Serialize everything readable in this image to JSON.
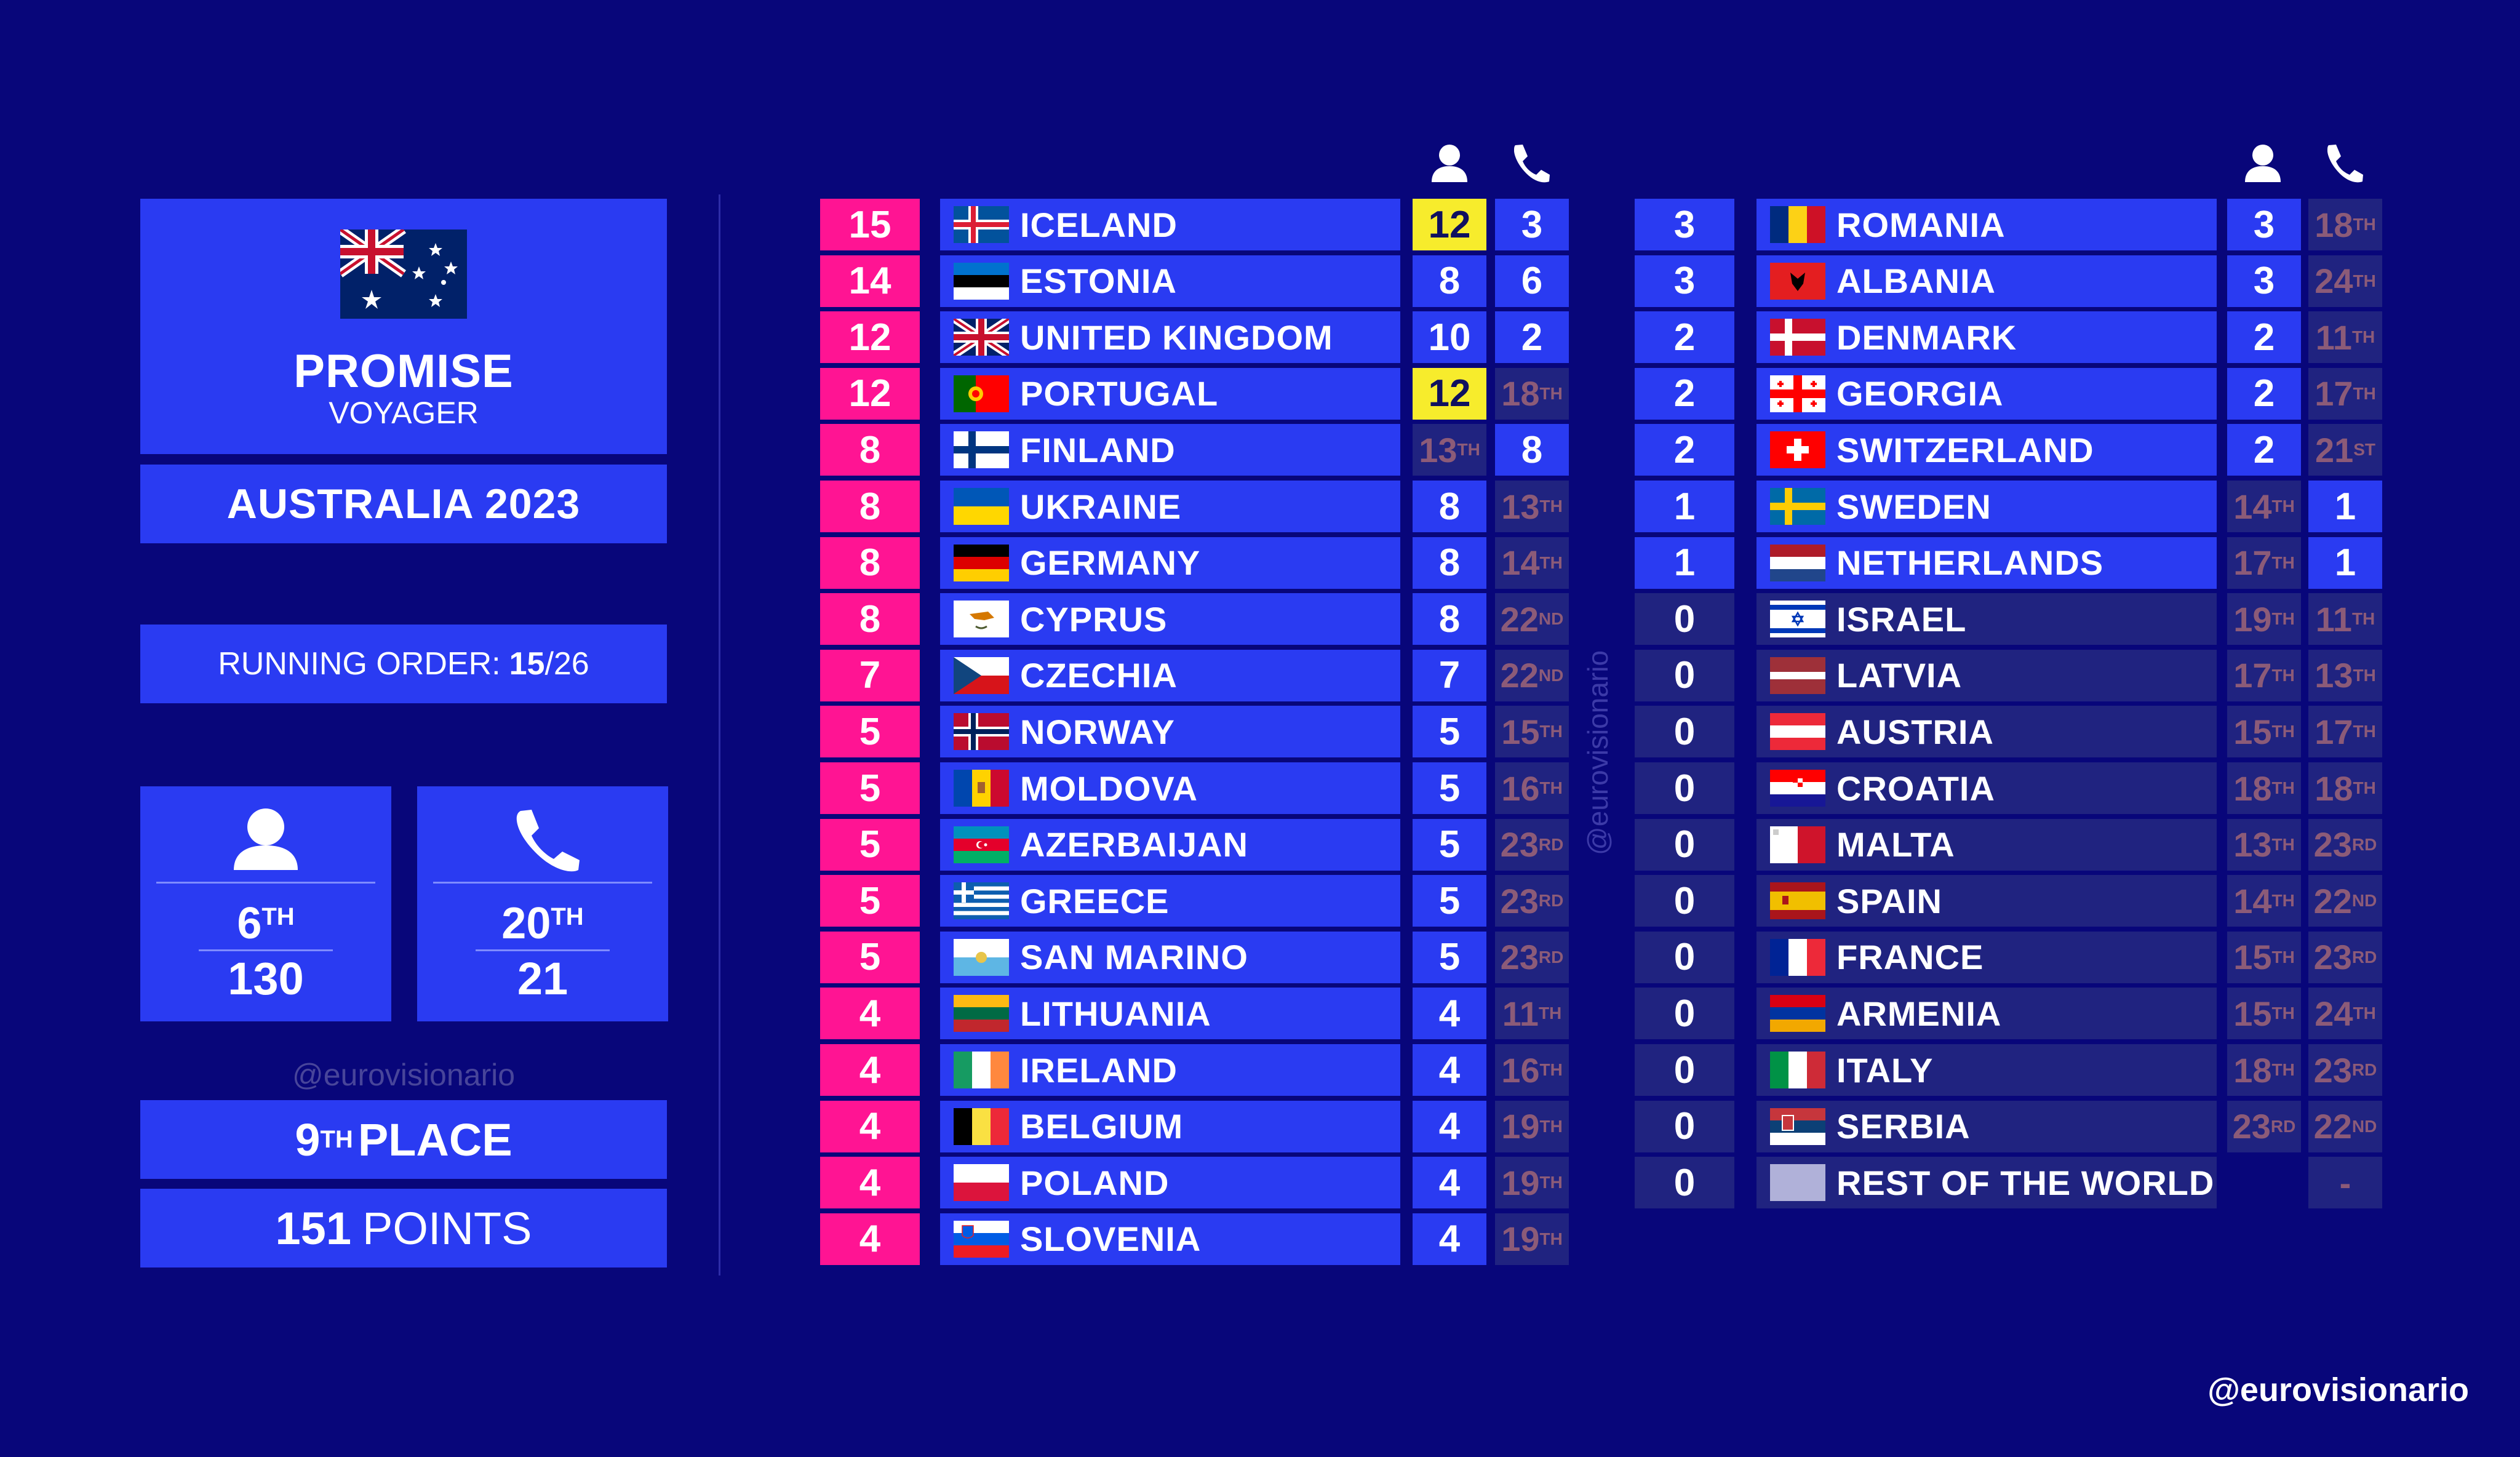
{
  "entry": {
    "song": "PROMISE",
    "performer": "VOYAGER",
    "country_year": "AUSTRALIA 2023",
    "running_order_label": "RUNNING ORDER:",
    "running_order_pos": "15",
    "running_order_total": "/26",
    "jury_rank": "6",
    "jury_rank_suffix": "TH",
    "jury_points": "130",
    "tele_rank": "20",
    "tele_rank_suffix": "TH",
    "tele_points": "21",
    "place": "9",
    "place_suffix": "TH",
    "place_label": "PLACE",
    "total_points": "151",
    "points_label": "POINTS",
    "flag_icon": "australia-flag-icon"
  },
  "handles": {
    "left": "@eurovisionario",
    "vertical": "@eurovisionario",
    "bottom_right": "@eurovisionario"
  },
  "colors": {
    "background": "#08067a",
    "panel": "#2a3bf2",
    "dim_panel": "#202380",
    "jury_pink": "#ff1493",
    "twelve_yellow": "#f7ec2c",
    "rank_muted": "#8c5b78"
  },
  "table_left": [
    {
      "total": "15",
      "country": "ICELAND",
      "jury": "12",
      "jury_hl": true,
      "tele": "3",
      "flag": "iceland"
    },
    {
      "total": "14",
      "country": "ESTONIA",
      "jury": "8",
      "tele": "6",
      "flag": "estonia"
    },
    {
      "total": "12",
      "country": "UNITED KINGDOM",
      "jury": "10",
      "tele": "2",
      "flag": "uk"
    },
    {
      "total": "12",
      "country": "PORTUGAL",
      "jury": "12",
      "jury_hl": true,
      "tele_rank": "18",
      "tele_suffix": "TH",
      "flag": "portugal"
    },
    {
      "total": "8",
      "country": "FINLAND",
      "jury_rank": "13",
      "jury_suffix": "TH",
      "tele": "8",
      "flag": "finland"
    },
    {
      "total": "8",
      "country": "UKRAINE",
      "jury": "8",
      "tele_rank": "13",
      "tele_suffix": "TH",
      "flag": "ukraine"
    },
    {
      "total": "8",
      "country": "GERMANY",
      "jury": "8",
      "tele_rank": "14",
      "tele_suffix": "TH",
      "flag": "germany"
    },
    {
      "total": "8",
      "country": "CYPRUS",
      "jury": "8",
      "tele_rank": "22",
      "tele_suffix": "ND",
      "flag": "cyprus"
    },
    {
      "total": "7",
      "country": "CZECHIA",
      "jury": "7",
      "tele_rank": "22",
      "tele_suffix": "ND",
      "flag": "czechia"
    },
    {
      "total": "5",
      "country": "NORWAY",
      "jury": "5",
      "tele_rank": "15",
      "tele_suffix": "TH",
      "flag": "norway"
    },
    {
      "total": "5",
      "country": "MOLDOVA",
      "jury": "5",
      "tele_rank": "16",
      "tele_suffix": "TH",
      "flag": "moldova"
    },
    {
      "total": "5",
      "country": "AZERBAIJAN",
      "jury": "5",
      "tele_rank": "23",
      "tele_suffix": "RD",
      "flag": "azerbaijan"
    },
    {
      "total": "5",
      "country": "GREECE",
      "jury": "5",
      "tele_rank": "23",
      "tele_suffix": "RD",
      "flag": "greece"
    },
    {
      "total": "5",
      "country": "SAN MARINO",
      "jury": "5",
      "tele_rank": "23",
      "tele_suffix": "RD",
      "flag": "sanmarino"
    },
    {
      "total": "4",
      "country": "LITHUANIA",
      "jury": "4",
      "tele_rank": "11",
      "tele_suffix": "TH",
      "flag": "lithuania"
    },
    {
      "total": "4",
      "country": "IRELAND",
      "jury": "4",
      "tele_rank": "16",
      "tele_suffix": "TH",
      "flag": "ireland"
    },
    {
      "total": "4",
      "country": "BELGIUM",
      "jury": "4",
      "tele_rank": "19",
      "tele_suffix": "TH",
      "flag": "belgium"
    },
    {
      "total": "4",
      "country": "POLAND",
      "jury": "4",
      "tele_rank": "19",
      "tele_suffix": "TH",
      "flag": "poland"
    },
    {
      "total": "4",
      "country": "SLOVENIA",
      "jury": "4",
      "tele_rank": "19",
      "tele_suffix": "TH",
      "flag": "slovenia"
    }
  ],
  "table_right": [
    {
      "total": "3",
      "country": "ROMANIA",
      "jury": "3",
      "tele_rank": "18",
      "tele_suffix": "TH",
      "flag": "romania"
    },
    {
      "total": "3",
      "country": "ALBANIA",
      "jury": "3",
      "tele_rank": "24",
      "tele_suffix": "TH",
      "flag": "albania"
    },
    {
      "total": "2",
      "country": "DENMARK",
      "jury": "2",
      "tele_rank": "11",
      "tele_suffix": "TH",
      "flag": "denmark"
    },
    {
      "total": "2",
      "country": "GEORGIA",
      "jury": "2",
      "tele_rank": "17",
      "tele_suffix": "TH",
      "flag": "georgia"
    },
    {
      "total": "2",
      "country": "SWITZERLAND",
      "jury": "2",
      "tele_rank": "21",
      "tele_suffix": "ST",
      "flag": "switzerland"
    },
    {
      "total": "1",
      "country": "SWEDEN",
      "jury_rank": "14",
      "jury_suffix": "TH",
      "tele": "1",
      "flag": "sweden"
    },
    {
      "total": "1",
      "country": "NETHERLANDS",
      "jury_rank": "17",
      "jury_suffix": "TH",
      "tele": "1",
      "flag": "netherlands"
    },
    {
      "total": "0",
      "country": "ISRAEL",
      "jury_rank": "19",
      "jury_suffix": "TH",
      "tele_rank": "11",
      "tele_suffix": "TH",
      "flag": "israel"
    },
    {
      "total": "0",
      "country": "LATVIA",
      "jury_rank": "17",
      "jury_suffix": "TH",
      "tele_rank": "13",
      "tele_suffix": "TH",
      "flag": "latvia"
    },
    {
      "total": "0",
      "country": "AUSTRIA",
      "jury_rank": "15",
      "jury_suffix": "TH",
      "tele_rank": "17",
      "tele_suffix": "TH",
      "flag": "austria"
    },
    {
      "total": "0",
      "country": "CROATIA",
      "jury_rank": "18",
      "jury_suffix": "TH",
      "tele_rank": "18",
      "tele_suffix": "TH",
      "flag": "croatia"
    },
    {
      "total": "0",
      "country": "MALTA",
      "jury_rank": "13",
      "jury_suffix": "TH",
      "tele_rank": "23",
      "tele_suffix": "RD",
      "flag": "malta"
    },
    {
      "total": "0",
      "country": "SPAIN",
      "jury_rank": "14",
      "jury_suffix": "TH",
      "tele_rank": "22",
      "tele_suffix": "ND",
      "flag": "spain"
    },
    {
      "total": "0",
      "country": "FRANCE",
      "jury_rank": "15",
      "jury_suffix": "TH",
      "tele_rank": "23",
      "tele_suffix": "RD",
      "flag": "france"
    },
    {
      "total": "0",
      "country": "ARMENIA",
      "jury_rank": "15",
      "jury_suffix": "TH",
      "tele_rank": "24",
      "tele_suffix": "TH",
      "flag": "armenia"
    },
    {
      "total": "0",
      "country": "ITALY",
      "jury_rank": "18",
      "jury_suffix": "TH",
      "tele_rank": "23",
      "tele_suffix": "RD",
      "flag": "italy"
    },
    {
      "total": "0",
      "country": "SERBIA",
      "jury_rank": "23",
      "jury_suffix": "RD",
      "tele_rank": "22",
      "tele_suffix": "ND",
      "flag": "serbia"
    },
    {
      "total": "0",
      "country": "REST OF THE WORLD",
      "jury_blank": true,
      "tele_text": "-",
      "flag": "rest"
    }
  ]
}
